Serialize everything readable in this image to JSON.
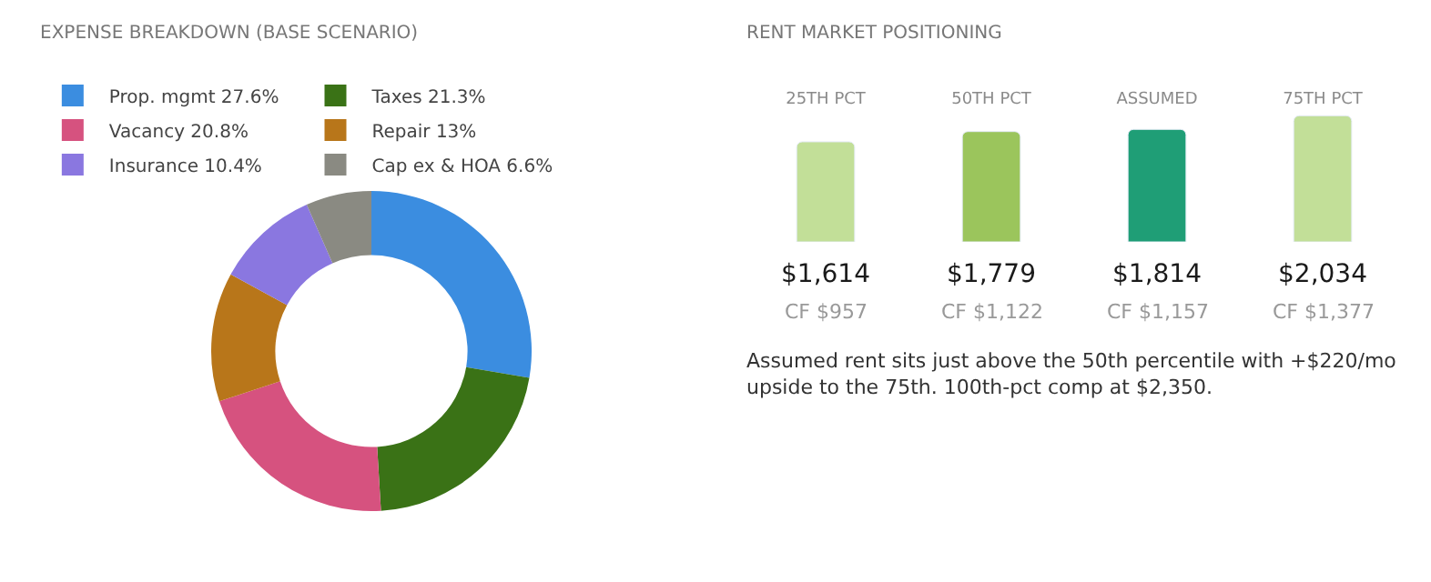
{
  "chart_data": [
    {
      "type": "donut",
      "title": "EXPENSE BREAKDOWN (BASE SCENARIO)",
      "categories": [
        "Prop. mgmt 27.6%",
        "Taxes 21.3%",
        "Vacancy 20.8%",
        "Repair 13%",
        "Insurance 10.4%",
        "Cap ex & HOA 6.6%"
      ],
      "values": [
        27.6,
        21.3,
        20.8,
        13,
        10.4,
        6.6
      ],
      "colors": [
        "#3b8de0",
        "#3a7216",
        "#d6527f",
        "#b8761a",
        "#8a77e0",
        "#8a8a82"
      ],
      "legend": "top left"
    },
    {
      "type": "bar",
      "title": "RENT MARKET POSITIONING",
      "categories": [
        "25TH PCT",
        "50TH PCT",
        "ASSUMED",
        "75TH PCT"
      ],
      "values": [
        1614,
        1779,
        1814,
        2034
      ],
      "colors": [
        "#c2df98",
        "#9bc55c",
        "#1f9e76",
        "#c2df98"
      ],
      "value_labels": [
        "$1,614",
        "$1,779",
        "$1,814",
        "$2,034"
      ],
      "tick_labels": "x",
      "annotations": [
        "CF $957",
        "CF $1,122",
        "CF $1,157",
        "CF $1,377",
        "Assumed rent sits just above the 50th percentile with +$220/mo upside to the 75th. 100th-pct comp at $2,350."
      ]
    }
  ]
}
